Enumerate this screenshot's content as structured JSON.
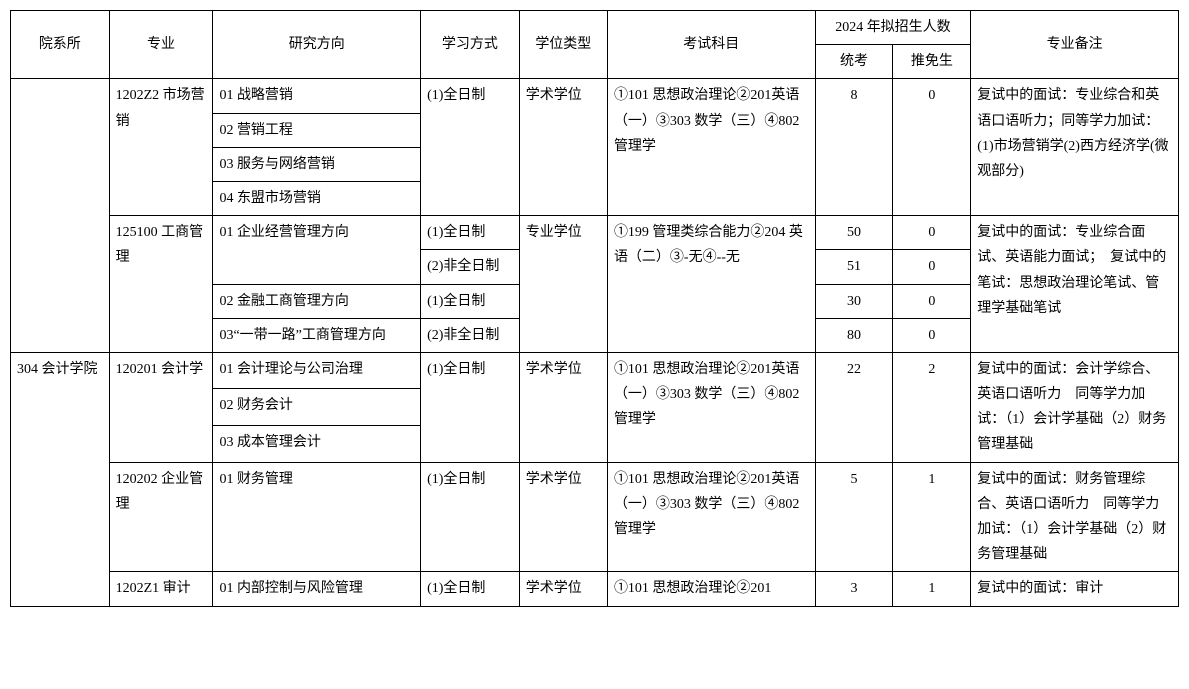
{
  "headers": {
    "dept": "院系所",
    "major": "专业",
    "direction": "研究方向",
    "mode": "学习方式",
    "degree": "学位类型",
    "exam": "考试科目",
    "enroll": "2024 年拟招生人数",
    "tk": "统考",
    "tm": "推免生",
    "note": "专业备注"
  },
  "r1": {
    "major": "1202Z2 市场营销",
    "dir": "01 战略营销",
    "mode": "(1)全日制",
    "degree": "学术学位",
    "exam": "①101 思想政治理论②201英语（一）③303 数学（三）④802 管理学",
    "tk": "8",
    "tm": "0",
    "note": "复试中的面试：专业综合和英语口语听力；同等学力加试：(1)市场营销学(2)西方经济学(微观部分)"
  },
  "r2": {
    "dir": "02 营销工程"
  },
  "r3": {
    "dir": "03 服务与网络营销"
  },
  "r4": {
    "dir": "04 东盟市场营销"
  },
  "r5": {
    "major": "125100 工商管理",
    "dir": "01 企业经营管理方向",
    "mode": "(1)全日制",
    "degree": "专业学位",
    "exam": "①199 管理类综合能力②204 英语（二）③-无④--无",
    "tk": "50",
    "tm": "0",
    "note": "复试中的面试：专业综合面试、英语能力面试；　复试中的笔试：思想政治理论笔试、管理学基础笔试"
  },
  "r6": {
    "mode": "(2)非全日制",
    "tk": "51",
    "tm": "0"
  },
  "r7": {
    "dir": "02 金融工商管理方向",
    "mode": "(1)全日制",
    "tk": "30",
    "tm": "0"
  },
  "r8": {
    "dir": "03“一带一路”工商管理方向",
    "mode": "(2)非全日制",
    "tk": "80",
    "tm": "0"
  },
  "r9": {
    "dept": "304 会计学院",
    "major": "120201 会计学",
    "dir": "01 会计理论与公司治理",
    "mode": "(1)全日制",
    "degree": "学术学位",
    "exam": "①101 思想政治理论②201英语（一）③303 数学（三）④802 管理学",
    "tk": "22",
    "tm": "2",
    "note": "复试中的面试：会计学综合、英语口语听力　同等学力加试：（1）会计学基础（2）财务管理基础"
  },
  "r10": {
    "dir": "02 财务会计"
  },
  "r11": {
    "dir": "03 成本管理会计"
  },
  "r12": {
    "major": "120202 企业管理",
    "dir": "01 财务管理",
    "mode": "(1)全日制",
    "degree": "学术学位",
    "exam": "①101 思想政治理论②201英语（一）③303 数学（三）④802 管理学",
    "tk": "5",
    "tm": "1",
    "note": "复试中的面试：财务管理综合、英语口语听力　同等学力加试：（1）会计学基础（2）财务管理基础"
  },
  "r13": {
    "major": "1202Z1 审计",
    "dir": "01 内部控制与风险管理",
    "mode": "(1)全日制",
    "degree": "学术学位",
    "exam": "①101 思想政治理论②201",
    "tk": "3",
    "tm": "1",
    "note": "复试中的面试：审计"
  }
}
